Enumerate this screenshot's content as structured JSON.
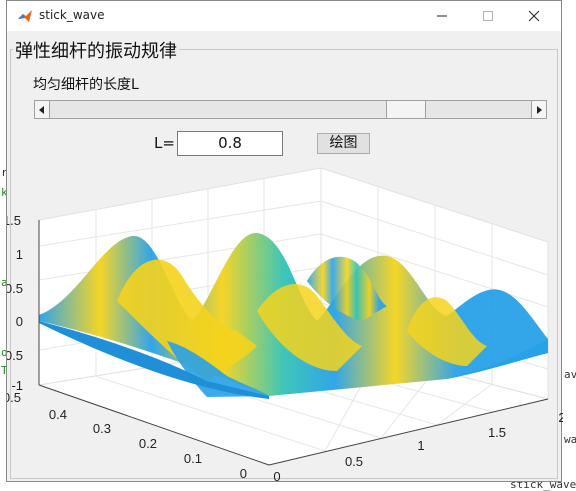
{
  "window": {
    "title": "stick_wave",
    "controls": {
      "minimize": "—",
      "maximize": "☐",
      "close": "✕"
    }
  },
  "panel": {
    "title": "弹性细杆的振动规律",
    "slider_label": "均匀细杆的长度L",
    "slider": {
      "value_fraction": 0.76
    },
    "l_label": "L=",
    "l_value": "0.8",
    "plot_button": "绘图"
  },
  "plot": {
    "z_ticks": [
      "1.5",
      "1",
      "0.5",
      "0",
      "-0.5",
      "-1"
    ],
    "x_ticks": [
      "0",
      "0.5",
      "1",
      "1.5",
      "2"
    ],
    "y_ticks": [
      "0",
      "0.1",
      "0.2",
      "0.3",
      "0.4",
      "0.5"
    ],
    "colors": {
      "low": "#27a1e8",
      "mid": "#33c3b5",
      "high": "#f5d31c",
      "peak": "#f8b83a"
    }
  },
  "chart_data": {
    "type": "surface",
    "title": "",
    "xlabel": "",
    "ylabel": "",
    "zlabel": "",
    "xlim": [
      0,
      2
    ],
    "ylim": [
      0,
      0.5
    ],
    "zlim": [
      -1,
      1.5
    ],
    "grid": true
  },
  "background": {
    "left_fragments": [
      "rg",
      "k",
      "an",
      "o",
      "T"
    ],
    "right_fragments": [
      "ave",
      "wave",
      "stick_wave"
    ]
  }
}
